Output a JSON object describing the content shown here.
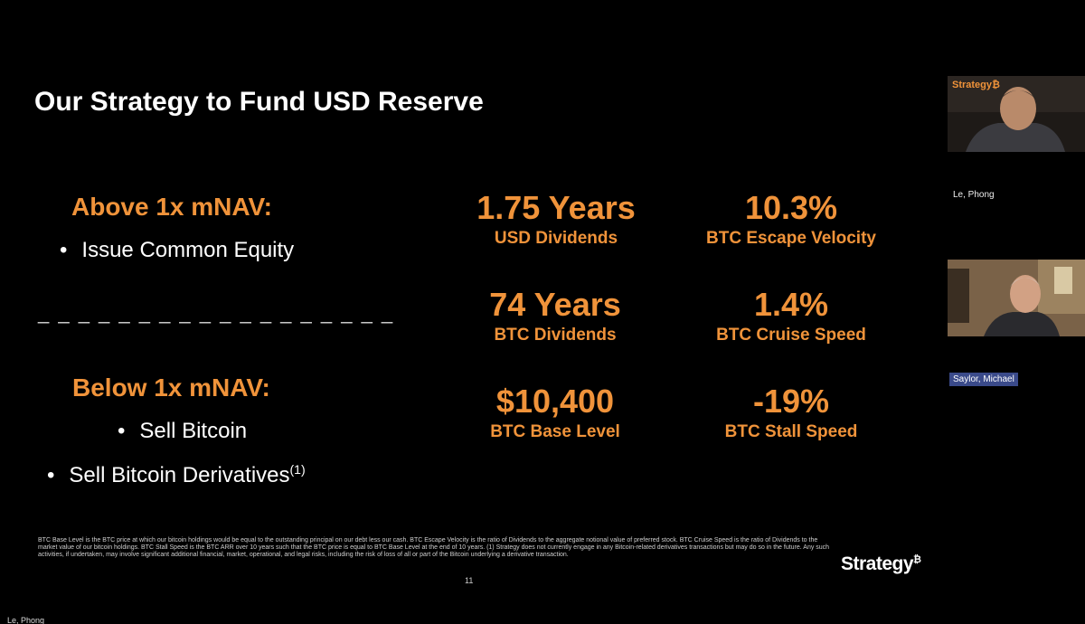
{
  "slide": {
    "title": "Our Strategy to Fund USD Reserve",
    "above": {
      "heading": "Above 1x mNAV:",
      "bullets": [
        "Issue Common Equity"
      ]
    },
    "divider": "_ _ _ _ _ _ _ _ _ _ _ _ _ _ _ _ _ _",
    "below": {
      "heading": "Below 1x mNAV:",
      "bullets": [
        "Sell Bitcoin",
        "Sell Bitcoin Derivatives"
      ],
      "footnote_ref": "(1)"
    },
    "metrics": [
      {
        "value": "1.75 Years",
        "label": "USD Dividends"
      },
      {
        "value": "10.3%",
        "label": "BTC Escape Velocity"
      },
      {
        "value": "74 Years",
        "label": "BTC Dividends"
      },
      {
        "value": "1.4%",
        "label": "BTC Cruise Speed"
      },
      {
        "value": "$10,400",
        "label": "BTC Base Level"
      },
      {
        "value": "-19%",
        "label": "BTC Stall Speed"
      }
    ],
    "footnote": "BTC Base Level is the BTC price at which our bitcoin holdings would be equal to the outstanding principal on our debt less our cash. BTC Escape Velocity is the ratio of Dividends to the aggregate notional value of preferred stock. BTC Cruise Speed is the ratio of Dividends to the market value of our bitcoin holdings. BTC Stall Speed is the BTC ARR over 10 years such that the BTC price is equal to BTC Base Level at the end of 10 years. (1) Strategy does not currently engage in any Bitcoin-related derivatives transactions but may do so in the future. Any such activities, if undertaken, may involve significant additional financial, market, operational, and legal risks, including the risk of loss of all or part of the Bitcoin underlying a derivative transaction.",
    "page_number": "11",
    "logo": "Strategy",
    "logo_mark": "₿"
  },
  "participants": [
    {
      "name": "Le, Phong",
      "tile_logo": "Strategy₿"
    },
    {
      "name": "Saylor, Michael"
    }
  ],
  "presenter_label": "Le, Phong",
  "colors": {
    "accent": "#f0933a",
    "background": "#000000",
    "name_tag": "#3a4a8a"
  }
}
